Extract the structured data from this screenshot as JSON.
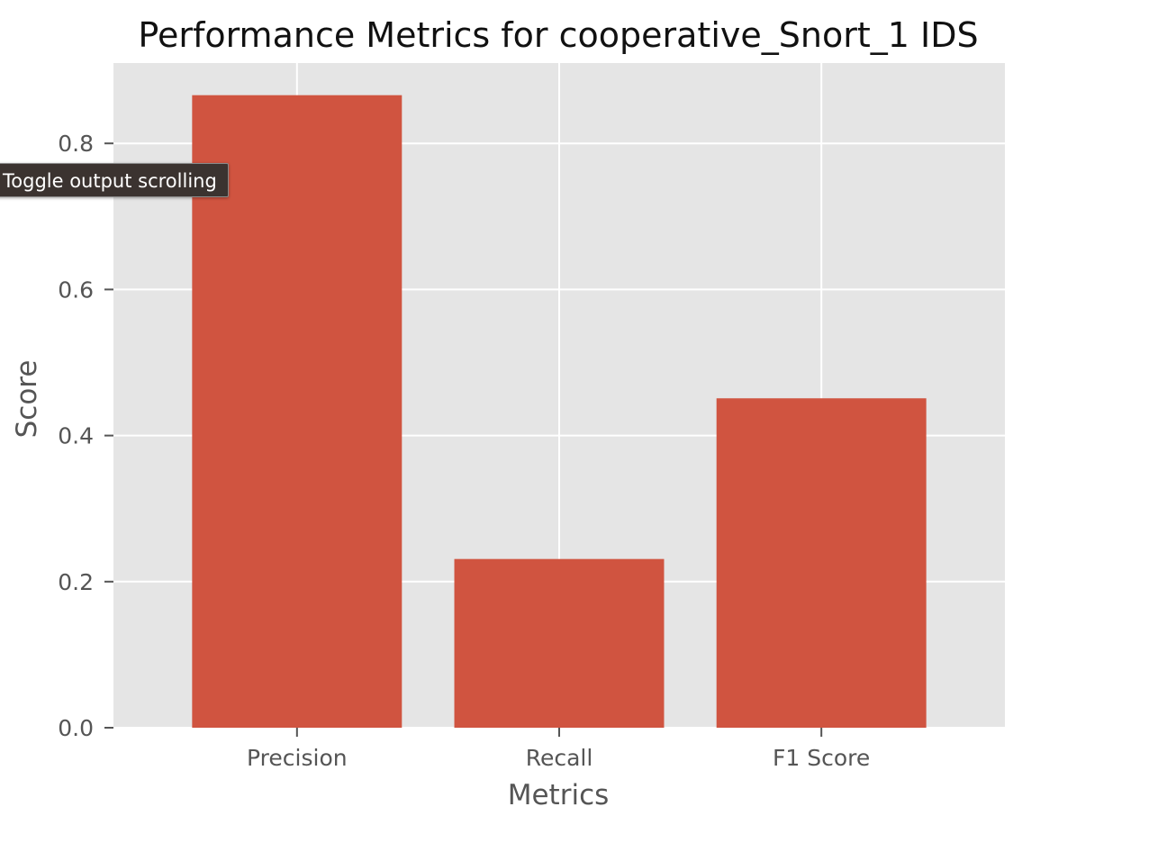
{
  "tooltip": {
    "text": "Toggle output scrolling"
  },
  "chart_data": {
    "type": "bar",
    "title": "Performance Metrics for cooperative_Snort_1 IDS",
    "xlabel": "Metrics",
    "ylabel": "Score",
    "categories": [
      "Precision",
      "Recall",
      "F1 Score"
    ],
    "values": [
      0.866,
      0.231,
      0.451
    ],
    "ylim": [
      0,
      0.91
    ],
    "yticks": [
      0.0,
      0.2,
      0.4,
      0.6,
      0.8
    ],
    "ytick_labels": [
      "0.0",
      "0.2",
      "0.4",
      "0.6",
      "0.8"
    ],
    "grid": true,
    "style": "ggplot",
    "colors": {
      "bar": "#d05440",
      "plot_background": "#e5e5e5",
      "grid": "#ffffff",
      "text": "#555555",
      "title": "#111111"
    }
  }
}
